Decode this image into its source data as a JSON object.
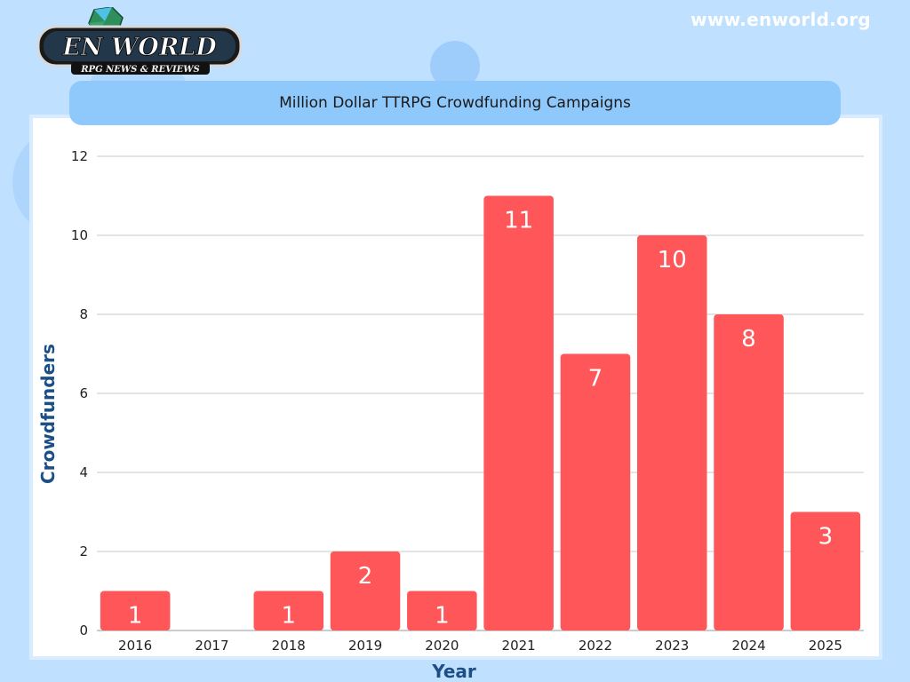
{
  "header": {
    "site_url": "www.enworld.org",
    "logo_main": "EN WORLD",
    "logo_sub": "RPG NEWS & REVIEWS"
  },
  "colors": {
    "bar": "#fe5659",
    "axis_title": "#1c4f86",
    "background": "#bfe0ff",
    "banner": "#8fc8fb"
  },
  "chart_data": {
    "type": "bar",
    "title": "Million Dollar TTRPG Crowdfunding Campaigns",
    "xlabel": "Year",
    "ylabel": "Crowdfunders",
    "categories": [
      "2016",
      "2017",
      "2018",
      "2019",
      "2020",
      "2021",
      "2022",
      "2023",
      "2024",
      "2025"
    ],
    "values": [
      1,
      0,
      1,
      2,
      1,
      11,
      7,
      10,
      8,
      3
    ],
    "data_labels": [
      "1",
      "",
      "1",
      "2",
      "1",
      "11",
      "7",
      "10",
      "8",
      "3"
    ],
    "ylim": [
      0,
      12
    ],
    "yticks": [
      0,
      2,
      4,
      6,
      8,
      10,
      12
    ],
    "grid": true,
    "legend": "none"
  }
}
